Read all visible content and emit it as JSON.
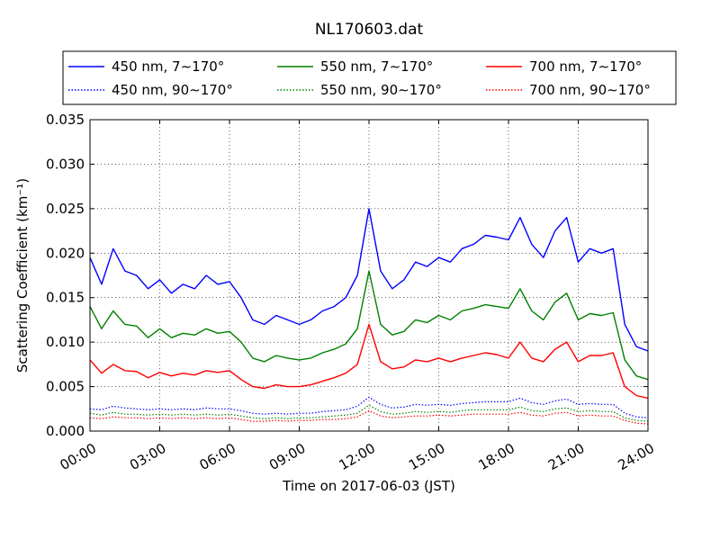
{
  "chart_data": {
    "type": "line",
    "title": "NL170603.dat",
    "xlabel": "Time on 2017-06-03 (JST)",
    "ylabel": "Scattering Coefficient (km⁻¹)",
    "xlim": [
      0,
      24
    ],
    "ylim": [
      0,
      0.035
    ],
    "x_tick_labels": [
      "00:00",
      "03:00",
      "06:00",
      "09:00",
      "12:00",
      "15:00",
      "18:00",
      "21:00",
      "24:00"
    ],
    "y_tick_labels": [
      "0.000",
      "0.005",
      "0.010",
      "0.015",
      "0.020",
      "0.025",
      "0.030",
      "0.035"
    ],
    "grid": true,
    "legend_position": "top",
    "x": [
      0.0,
      0.5,
      1.0,
      1.5,
      2.0,
      2.5,
      3.0,
      3.5,
      4.0,
      4.5,
      5.0,
      5.5,
      6.0,
      6.5,
      7.0,
      7.5,
      8.0,
      8.5,
      9.0,
      9.5,
      10.0,
      10.5,
      11.0,
      11.5,
      12.0,
      12.5,
      13.0,
      13.5,
      14.0,
      14.5,
      15.0,
      15.5,
      16.0,
      16.5,
      17.0,
      17.5,
      18.0,
      18.5,
      19.0,
      19.5,
      20.0,
      20.5,
      21.0,
      21.5,
      22.0,
      22.5,
      23.0,
      23.5,
      24.0
    ],
    "series": [
      {
        "name": "450 nm, 7∼170°",
        "color": "#0000ff",
        "style": "solid",
        "values": [
          0.0195,
          0.0165,
          0.0205,
          0.018,
          0.0175,
          0.016,
          0.017,
          0.0155,
          0.0165,
          0.016,
          0.0175,
          0.0165,
          0.0168,
          0.015,
          0.0125,
          0.012,
          0.013,
          0.0125,
          0.012,
          0.0125,
          0.0135,
          0.014,
          0.015,
          0.0175,
          0.025,
          0.018,
          0.016,
          0.017,
          0.019,
          0.0185,
          0.0195,
          0.019,
          0.0205,
          0.021,
          0.022,
          0.0218,
          0.0215,
          0.024,
          0.021,
          0.0195,
          0.0225,
          0.024,
          0.019,
          0.0205,
          0.02,
          0.0205,
          0.012,
          0.0095,
          0.009
        ]
      },
      {
        "name": "450 nm, 90∼170°",
        "color": "#0000ff",
        "style": "dotted",
        "values": [
          0.0025,
          0.0024,
          0.0028,
          0.0026,
          0.0025,
          0.0024,
          0.0025,
          0.0024,
          0.0025,
          0.0024,
          0.0026,
          0.0025,
          0.0025,
          0.0023,
          0.002,
          0.0019,
          0.002,
          0.0019,
          0.002,
          0.002,
          0.0022,
          0.0023,
          0.0024,
          0.0028,
          0.0038,
          0.003,
          0.0026,
          0.0027,
          0.003,
          0.0029,
          0.003,
          0.0029,
          0.0031,
          0.0032,
          0.0033,
          0.0033,
          0.0033,
          0.0037,
          0.0032,
          0.003,
          0.0034,
          0.0036,
          0.003,
          0.0031,
          0.003,
          0.003,
          0.002,
          0.0016,
          0.0015
        ]
      },
      {
        "name": "550 nm, 7∼170°",
        "color": "#008000",
        "style": "solid",
        "values": [
          0.014,
          0.0115,
          0.0135,
          0.012,
          0.0118,
          0.0105,
          0.0115,
          0.0105,
          0.011,
          0.0108,
          0.0115,
          0.011,
          0.0112,
          0.01,
          0.0082,
          0.0078,
          0.0085,
          0.0082,
          0.008,
          0.0082,
          0.0088,
          0.0092,
          0.0098,
          0.0115,
          0.018,
          0.012,
          0.0108,
          0.0112,
          0.0125,
          0.0122,
          0.013,
          0.0125,
          0.0135,
          0.0138,
          0.0142,
          0.014,
          0.0138,
          0.016,
          0.0135,
          0.0125,
          0.0145,
          0.0155,
          0.0125,
          0.0132,
          0.013,
          0.0133,
          0.008,
          0.0062,
          0.0058
        ]
      },
      {
        "name": "550 nm, 90∼170°",
        "color": "#008000",
        "style": "dotted",
        "values": [
          0.002,
          0.0018,
          0.0021,
          0.0019,
          0.0019,
          0.0018,
          0.0019,
          0.0018,
          0.0019,
          0.0018,
          0.0019,
          0.0018,
          0.0019,
          0.0017,
          0.0015,
          0.0014,
          0.0015,
          0.0014,
          0.0015,
          0.0015,
          0.0016,
          0.0017,
          0.0018,
          0.002,
          0.0029,
          0.0022,
          0.0019,
          0.002,
          0.0022,
          0.0021,
          0.0022,
          0.0021,
          0.0023,
          0.0024,
          0.0024,
          0.0024,
          0.0024,
          0.0027,
          0.0023,
          0.0022,
          0.0025,
          0.0026,
          0.0022,
          0.0023,
          0.0022,
          0.0022,
          0.0015,
          0.0012,
          0.0011
        ]
      },
      {
        "name": "700 nm, 7∼170°",
        "color": "#ff0000",
        "style": "solid",
        "values": [
          0.008,
          0.0065,
          0.0075,
          0.0068,
          0.0067,
          0.006,
          0.0066,
          0.0062,
          0.0065,
          0.0063,
          0.0068,
          0.0066,
          0.0068,
          0.0058,
          0.005,
          0.0048,
          0.0052,
          0.005,
          0.005,
          0.0052,
          0.0056,
          0.006,
          0.0065,
          0.0075,
          0.012,
          0.0078,
          0.007,
          0.0072,
          0.008,
          0.0078,
          0.0082,
          0.0078,
          0.0082,
          0.0085,
          0.0088,
          0.0086,
          0.0082,
          0.01,
          0.0082,
          0.0078,
          0.0092,
          0.01,
          0.0078,
          0.0085,
          0.0085,
          0.0088,
          0.005,
          0.004,
          0.0037
        ]
      },
      {
        "name": "700 nm, 90∼170°",
        "color": "#ff0000",
        "style": "dotted",
        "values": [
          0.0015,
          0.0014,
          0.0016,
          0.0015,
          0.0015,
          0.0014,
          0.0015,
          0.0014,
          0.0015,
          0.0014,
          0.0015,
          0.0014,
          0.0015,
          0.0013,
          0.0011,
          0.0011,
          0.0012,
          0.0011,
          0.0012,
          0.0012,
          0.0013,
          0.0013,
          0.0014,
          0.0016,
          0.0023,
          0.0017,
          0.0015,
          0.0016,
          0.0017,
          0.0017,
          0.0018,
          0.0017,
          0.0018,
          0.0019,
          0.0019,
          0.0019,
          0.0019,
          0.0021,
          0.0018,
          0.0017,
          0.002,
          0.0021,
          0.0017,
          0.0018,
          0.0017,
          0.0017,
          0.0012,
          0.0009,
          0.0008
        ]
      }
    ]
  }
}
